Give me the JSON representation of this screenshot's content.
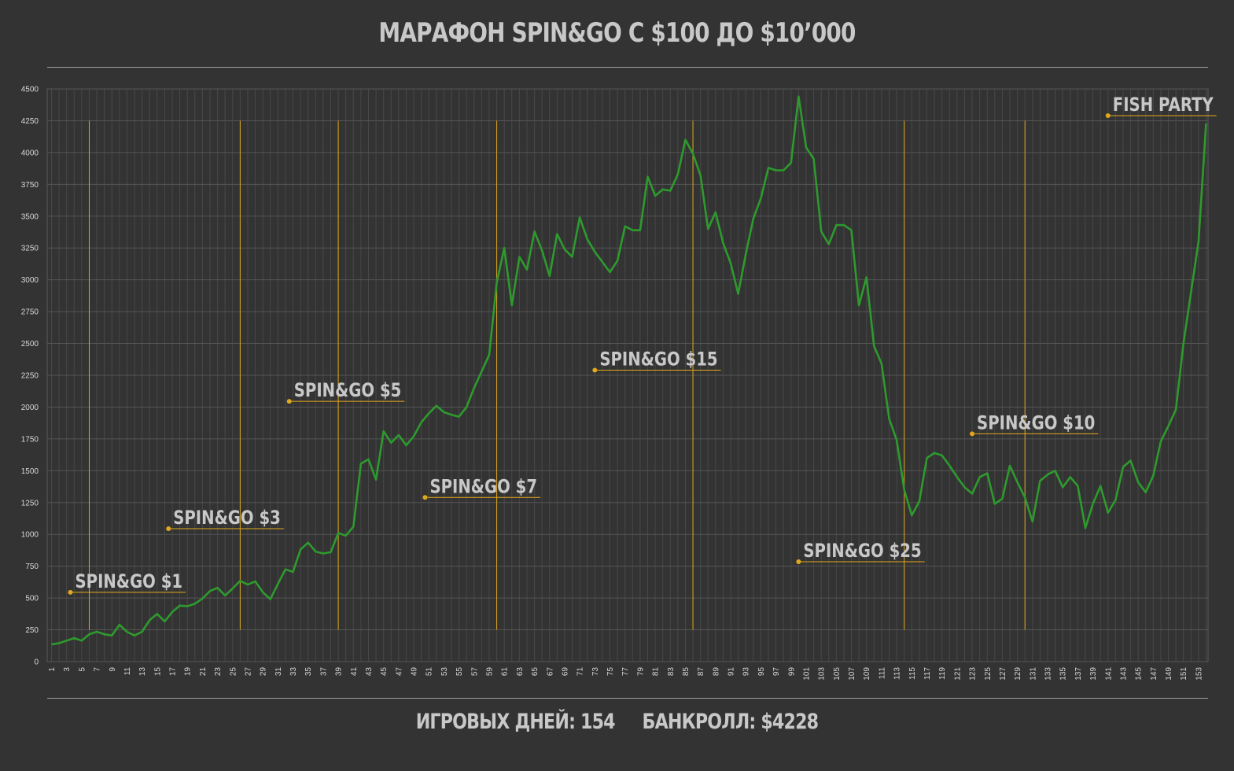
{
  "header": {
    "title": "МАРАФОН SPIN&GO С $100 ДО $10’000"
  },
  "footer": {
    "days": "ИГРОВЫХ ДНЕЙ: 154",
    "bankroll": "БАНКРОЛЛ: $4228"
  },
  "colors": {
    "background": "#333333",
    "line": "#2e9a2e",
    "marker": "#e0a81c",
    "grid": "#555555",
    "text": "#c8c8c8"
  },
  "chart_data": {
    "type": "line",
    "title": "МАРАФОН SPIN&GO С $100 ДО $10’000",
    "xlabel": "",
    "ylabel": "",
    "xlim": [
      1,
      154
    ],
    "ylim": [
      0,
      4500
    ],
    "yticks": [
      0,
      250,
      500,
      750,
      1000,
      1250,
      1500,
      1750,
      2000,
      2250,
      2500,
      2750,
      3000,
      3250,
      3500,
      3750,
      4000,
      4250,
      4500
    ],
    "xticks": [
      1,
      3,
      5,
      7,
      9,
      11,
      13,
      15,
      17,
      19,
      21,
      23,
      25,
      27,
      29,
      31,
      33,
      35,
      37,
      39,
      41,
      43,
      45,
      47,
      49,
      51,
      53,
      55,
      57,
      59,
      61,
      63,
      65,
      67,
      69,
      71,
      73,
      75,
      77,
      79,
      81,
      83,
      85,
      87,
      89,
      91,
      93,
      95,
      97,
      99,
      101,
      103,
      105,
      107,
      109,
      111,
      113,
      115,
      117,
      119,
      121,
      123,
      125,
      127,
      129,
      131,
      133,
      135,
      137,
      139,
      141,
      143,
      145,
      147,
      149,
      151,
      153
    ],
    "grid": true,
    "series": [
      {
        "values": [
          135,
          145,
          165,
          185,
          165,
          215,
          235,
          215,
          205,
          290,
          235,
          205,
          235,
          325,
          375,
          315,
          390,
          440,
          435,
          455,
          495,
          555,
          580,
          520,
          575,
          635,
          605,
          630,
          545,
          490,
          610,
          725,
          705,
          880,
          935,
          865,
          850,
          860,
          1010,
          990,
          1060,
          1555,
          1590,
          1430,
          1810,
          1720,
          1780,
          1700,
          1770,
          1880,
          1950,
          2010,
          1960,
          1940,
          1925,
          2000,
          2150,
          2280,
          2410,
          2980,
          3250,
          2800,
          3180,
          3080,
          3380,
          3230,
          3030,
          3360,
          3240,
          3180,
          3490,
          3320,
          3220,
          3140,
          3060,
          3150,
          3420,
          3390,
          3390,
          3810,
          3660,
          3710,
          3700,
          3830,
          4100,
          3990,
          3820,
          3400,
          3530,
          3290,
          3130,
          2890,
          3200,
          3480,
          3640,
          3880,
          3860,
          3860,
          3920,
          4440,
          4040,
          3950,
          3380,
          3280,
          3430,
          3430,
          3390,
          2800,
          3020,
          2480,
          2340,
          1910,
          1740,
          1350,
          1150,
          1260,
          1600,
          1640,
          1620,
          1540,
          1450,
          1370,
          1320,
          1450,
          1480,
          1240,
          1280,
          1540,
          1410,
          1290,
          1100,
          1420,
          1470,
          1500,
          1370,
          1450,
          1380,
          1050,
          1240,
          1380,
          1170,
          1270,
          1530,
          1580,
          1410,
          1330,
          1460,
          1730,
          1850,
          1980,
          2500,
          2900,
          3300,
          4228
        ]
      }
    ],
    "stage_markers": [
      6,
      26,
      39,
      60,
      86,
      114,
      130
    ],
    "annotations": [
      {
        "text": "SPIN&GO $1",
        "x": 3.5,
        "y": 545
      },
      {
        "text": "SPIN&GO $3",
        "x": 16.5,
        "y": 1045
      },
      {
        "text": "SPIN&GO $5",
        "x": 32.5,
        "y": 2045
      },
      {
        "text": "SPIN&GO $7",
        "x": 50.5,
        "y": 1290
      },
      {
        "text": "SPIN&GO $15",
        "x": 73,
        "y": 2290
      },
      {
        "text": "SPIN&GO $25",
        "x": 100,
        "y": 785
      },
      {
        "text": "SPIN&GO $10",
        "x": 123,
        "y": 1790
      },
      {
        "text": "FISH PARTY",
        "x": 141,
        "y": 4290
      }
    ]
  }
}
